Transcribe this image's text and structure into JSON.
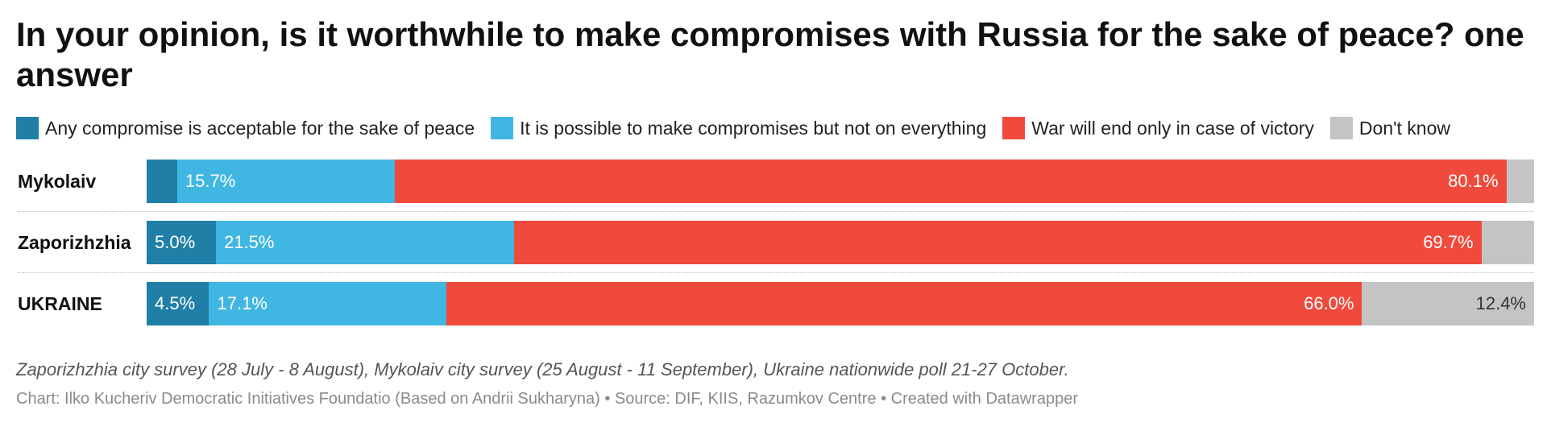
{
  "title": "In your opinion, is it worthwhile to make compromises with Russia for the sake of peace? one answer",
  "notes": "Zaporizhzhia city survey (28 July - 8 August), Mykolaiv city survey (25 August - 11 September), Ukraine nationwide poll 21-27 October.",
  "credit": {
    "chart": "Chart: Ilko Kucheriv Democratic Initiatives Foundatio (Based on Andrii Sukharyna)",
    "source": "Source: DIF, KIIS, Razumkov Centre",
    "made_with": "Created with Datawrapper",
    "separator": "•"
  },
  "colors": {
    "any_compromise": "#1f7fa6",
    "possible": "#40b6e2",
    "victory": "#ef4a3c",
    "dont_know": "#c4c4c4"
  },
  "chart_data": {
    "type": "bar",
    "orientation": "horizontal",
    "stacked": true,
    "normalized_to": 100,
    "categories": [
      "Mykolaiv",
      "Zaporizhzhia",
      "UKRAINE"
    ],
    "series": [
      {
        "name": "Any compromise is acceptable for the sake of peace",
        "key": "any_compromise",
        "values": [
          2.2,
          5.0,
          4.5
        ],
        "labels": [
          "",
          "5.0%",
          "4.5%"
        ],
        "label_dark": false
      },
      {
        "name": "It is possible to make compromises but not on everything",
        "key": "possible",
        "values": [
          15.7,
          21.5,
          17.1
        ],
        "labels": [
          "15.7%",
          "21.5%",
          "17.1%"
        ],
        "label_dark": false
      },
      {
        "name": "War will end only in case of victory",
        "key": "victory",
        "values": [
          80.1,
          69.7,
          66.0
        ],
        "labels": [
          "80.1%",
          "69.7%",
          "66.0%"
        ],
        "label_dark": false,
        "label_align": "end"
      },
      {
        "name": "Don't know",
        "key": "dont_know",
        "values": [
          2.0,
          3.8,
          12.4
        ],
        "labels": [
          "",
          "",
          "12.4%"
        ],
        "label_dark": true,
        "label_align": "end"
      }
    ],
    "legend_position": "top-left",
    "grid": false
  }
}
